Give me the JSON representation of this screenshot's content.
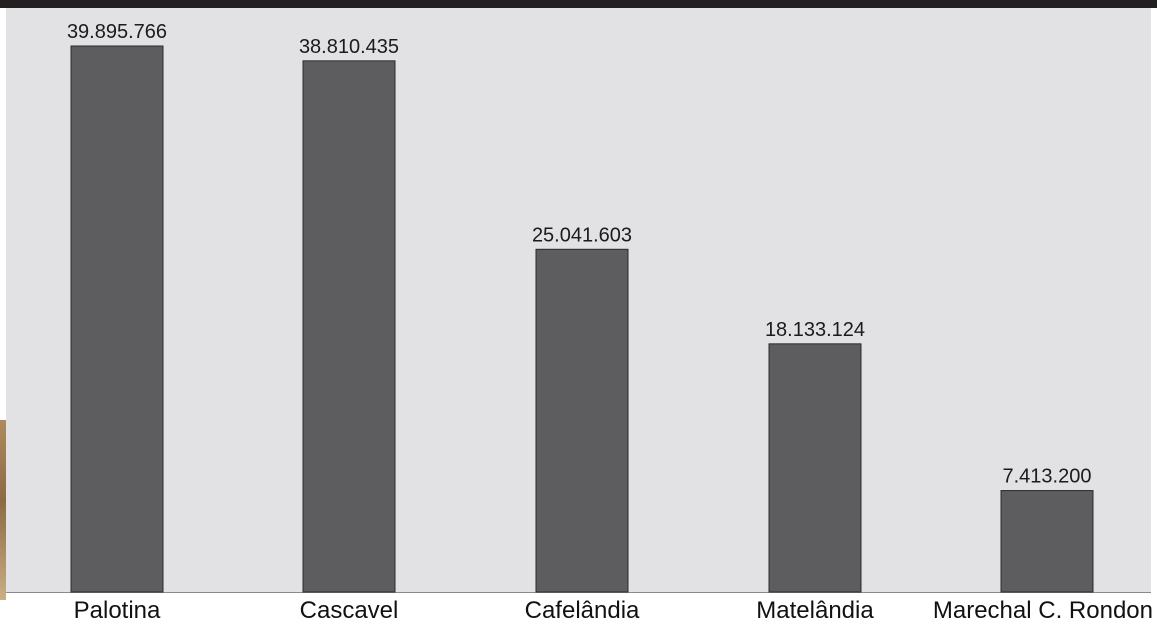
{
  "chart_data": {
    "type": "bar",
    "categories": [
      "Palotina",
      "Cascavel",
      "Cafelândia",
      "Matelândia",
      "Marechal C. Rondon"
    ],
    "values": [
      39895766,
      38810435,
      25041603,
      18133124,
      7413200
    ],
    "value_labels": [
      "39.895.766",
      "38.810.435",
      "25.041.603",
      "18.133.124",
      "7.413.200"
    ],
    "title": "",
    "xlabel": "",
    "ylabel": "",
    "ylim": [
      0,
      40000000
    ],
    "grid": false,
    "legend": "none",
    "colors": {
      "bar": "#5d5c5e",
      "background": "#e2e2e4",
      "top_band": "#231f20"
    }
  }
}
